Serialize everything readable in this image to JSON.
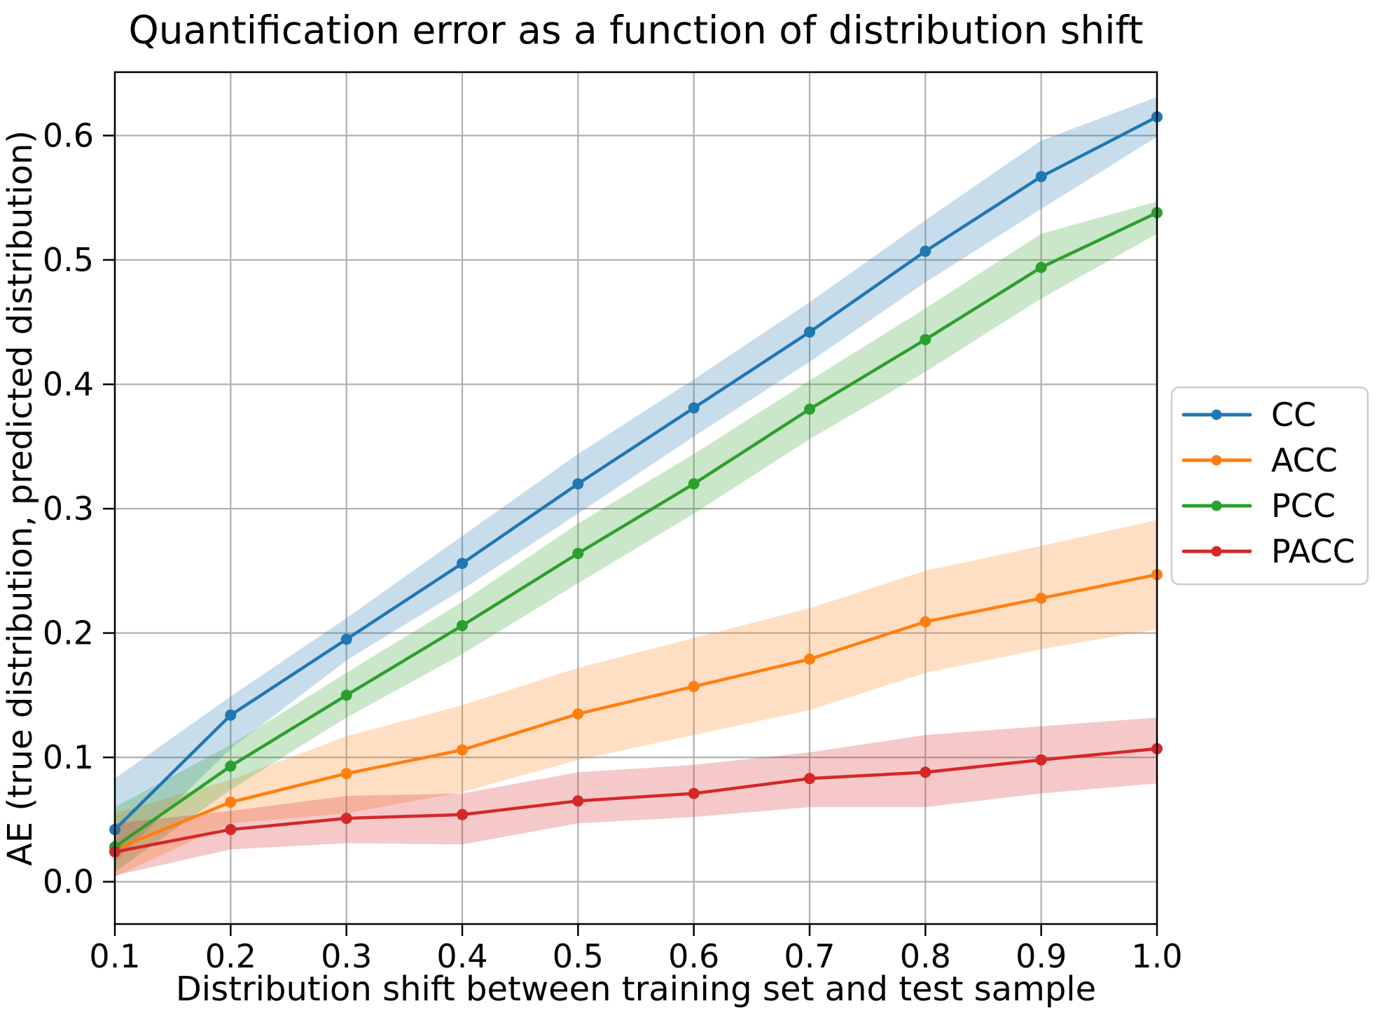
{
  "chart_data": {
    "type": "line",
    "title": "Quantification error as a function of distribution shift",
    "xlabel": "Distribution shift between training set and test sample",
    "ylabel": "AE (true distribution, predicted distribution)",
    "x": [
      0.1,
      0.2,
      0.3,
      0.4,
      0.5,
      0.6,
      0.7,
      0.8,
      0.9,
      1.0
    ],
    "xtick_labels": [
      "0.1",
      "0.2",
      "0.3",
      "0.4",
      "0.5",
      "0.6",
      "0.7",
      "0.8",
      "0.9",
      "1.0"
    ],
    "ytick_values": [
      0.0,
      0.1,
      0.2,
      0.3,
      0.4,
      0.5,
      0.6
    ],
    "ytick_labels": [
      "0.0",
      "0.1",
      "0.2",
      "0.3",
      "0.4",
      "0.5",
      "0.6"
    ],
    "xlim": [
      0.1,
      1.0
    ],
    "ylim": [
      -0.034,
      0.651
    ],
    "grid": true,
    "grid_color": "#b0b0b0",
    "spine_color": "#000000",
    "band_opacity": 0.25,
    "legend_position": "right-outside",
    "series": [
      {
        "name": "CC",
        "color": "#1f77b4",
        "values": [
          0.042,
          0.134,
          0.195,
          0.256,
          0.32,
          0.381,
          0.442,
          0.507,
          0.567,
          0.615
        ],
        "band_lower": [
          0.016,
          0.107,
          0.178,
          0.235,
          0.296,
          0.358,
          0.418,
          0.482,
          0.541,
          0.599
        ],
        "band_upper": [
          0.083,
          0.149,
          0.212,
          0.278,
          0.344,
          0.404,
          0.466,
          0.532,
          0.596,
          0.631
        ]
      },
      {
        "name": "ACC",
        "color": "#ff7f0e",
        "values": [
          0.026,
          0.064,
          0.087,
          0.106,
          0.135,
          0.157,
          0.179,
          0.209,
          0.228,
          0.247
        ],
        "band_lower": [
          0.004,
          0.047,
          0.055,
          0.072,
          0.098,
          0.118,
          0.138,
          0.168,
          0.187,
          0.203
        ],
        "band_upper": [
          0.055,
          0.082,
          0.117,
          0.142,
          0.172,
          0.196,
          0.22,
          0.25,
          0.27,
          0.291
        ]
      },
      {
        "name": "PCC",
        "color": "#2ca02c",
        "values": [
          0.028,
          0.093,
          0.15,
          0.206,
          0.264,
          0.32,
          0.38,
          0.436,
          0.494,
          0.538
        ],
        "band_lower": [
          0.008,
          0.074,
          0.132,
          0.183,
          0.24,
          0.296,
          0.356,
          0.41,
          0.469,
          0.521
        ],
        "band_upper": [
          0.06,
          0.11,
          0.168,
          0.225,
          0.288,
          0.344,
          0.403,
          0.461,
          0.521,
          0.547
        ]
      },
      {
        "name": "PACC",
        "color": "#d62728",
        "values": [
          0.024,
          0.042,
          0.051,
          0.054,
          0.065,
          0.071,
          0.083,
          0.088,
          0.098,
          0.107
        ],
        "band_lower": [
          0.005,
          0.026,
          0.031,
          0.03,
          0.047,
          0.052,
          0.06,
          0.06,
          0.071,
          0.079
        ],
        "band_upper": [
          0.047,
          0.057,
          0.069,
          0.071,
          0.088,
          0.094,
          0.104,
          0.118,
          0.125,
          0.132
        ]
      }
    ]
  }
}
